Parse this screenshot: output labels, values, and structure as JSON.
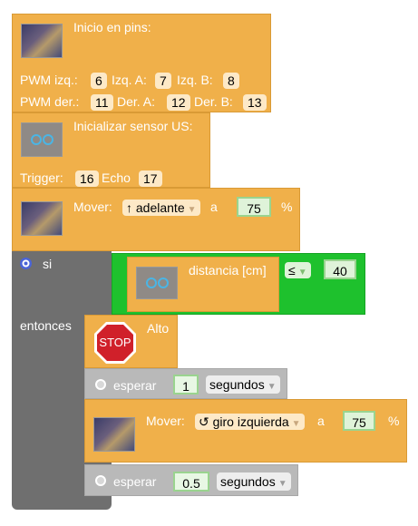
{
  "init_pins": {
    "title": "Inicio en pins:",
    "row1": {
      "l1": "PWM izq.:",
      "v1": "6",
      "l2": "Izq. A:",
      "v2": "7",
      "l3": "Izq. B:",
      "v3": "8"
    },
    "row2": {
      "l1": "PWM der.:",
      "v1": "11",
      "l2": "Der. A:",
      "v2": "12",
      "l3": "Der. B:",
      "v3": "13"
    }
  },
  "init_sensor": {
    "title": "Inicializar sensor US:",
    "trigger_label": "Trigger:",
    "trigger_value": "16",
    "echo_label": "Echo",
    "echo_value": "17"
  },
  "move1": {
    "label": "Mover:",
    "direction": "↑ adelante",
    "a_label": "a",
    "speed": "75",
    "unit": "%"
  },
  "if_block": {
    "if_label": "si",
    "then_label": "entonces",
    "condition": {
      "sensor_label": "distancia [cm]",
      "operator": "≤",
      "value": "40"
    }
  },
  "stop": {
    "icon_text": "STOP",
    "label": "Alto"
  },
  "wait1": {
    "label": "esperar",
    "value": "1",
    "unit": "segundos"
  },
  "move2": {
    "label": "Mover:",
    "direction": "↺ giro izquierda",
    "a_label": "a",
    "speed": "75",
    "unit": "%"
  },
  "wait2": {
    "label": "esperar",
    "value": "0.5",
    "unit": "segundos"
  },
  "colors": {
    "motion": "#f0b04a",
    "control": "#6f6f6f",
    "logic": "#1ec12d",
    "time": "#b9b9b9",
    "stop": "#d0202a"
  }
}
